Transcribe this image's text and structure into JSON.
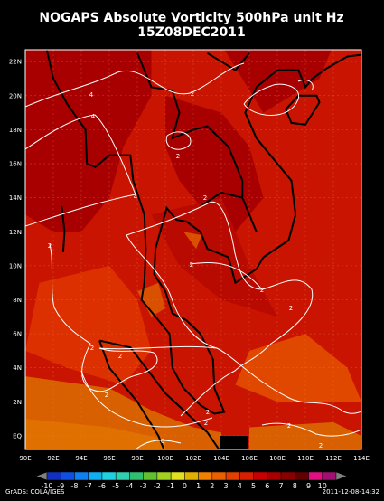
{
  "title": "NOGAPS Absolute Vorticity 500hPa unit Hz",
  "subtitle": "15Z08DEC2011",
  "lat_labels": [
    "EQ",
    "2N",
    "4N",
    "6N",
    "8N",
    "10N",
    "12N",
    "14N",
    "16N",
    "18N",
    "20N",
    "22N"
  ],
  "lon_labels": [
    "90E",
    "92E",
    "94E",
    "96E",
    "98E",
    "100E",
    "102E",
    "104E",
    "106E",
    "108E",
    "110E",
    "112E",
    "114E"
  ],
  "colorbar_labels": [
    "-10",
    "-9",
    "-8",
    "-7",
    "-6",
    "-5",
    "-4",
    "-3",
    "-2",
    "-1",
    "0",
    "1",
    "2",
    "3",
    "4",
    "5",
    "6",
    "7",
    "8",
    "9",
    "10"
  ],
  "contour_labels": [
    "4",
    "4",
    "2",
    "2",
    "4",
    "2",
    "2",
    "2",
    "2",
    "2",
    "2",
    "2",
    "2",
    "2",
    "2",
    "2",
    "2",
    "0"
  ],
  "footer_left": "GrADS: COLA/IGES",
  "footer_right": "2011-12-08-14:32"
}
